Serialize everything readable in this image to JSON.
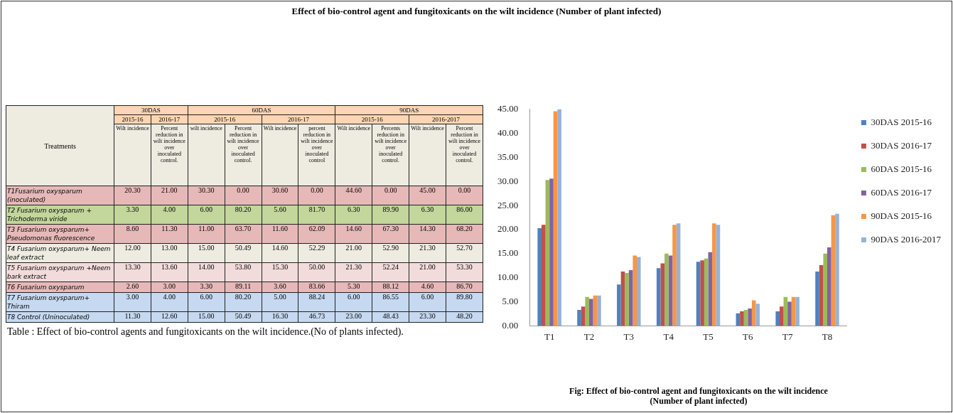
{
  "chart_data": [
    {
      "type": "heatmap",
      "data_labels": true,
      "ylabel": "Treatments",
      "categories": [
        "Wilt incidence",
        "Percent reduction in wilt incidence over inoculated control.",
        "wilt incidence",
        "Percent reduction in wilt incidence over inoculated control.",
        "Wilt incidence",
        "percent reduction in wilt incidence over inoculated control",
        "Wilt incidence",
        "Percents reduction in wilt incidence over inoculated control.",
        "Wilt incidence",
        "Percent reduction in wilt incidence over inoculated control."
      ],
      "y_categories": [
        "T1Fusarium oxysparum (inoculated)",
        "T2 Fusarium oxysparum + Trichoderma viride",
        "T3 Fusarium oxysparum+ Pseudomonas fluorescence",
        "T4 Fusarium oxysparum+ Neem leaf extract",
        "T5 Fusarium oxysparum +Neem bark extract",
        "T6 Fusarium oxysparum",
        "T7 Fusarium oxysparum+ Thiram",
        "T8 Control (Uninoculated)"
      ],
      "cells": [
        [
          20.3,
          21.0,
          30.3,
          0.0,
          30.6,
          0.0,
          44.6,
          0.0,
          45.0,
          0.0
        ],
        [
          3.3,
          4.0,
          6.0,
          80.2,
          5.6,
          81.7,
          6.3,
          89.9,
          6.3,
          86.0
        ],
        [
          8.6,
          11.3,
          11.0,
          63.7,
          11.6,
          62.09,
          14.6,
          67.3,
          14.3,
          68.2
        ],
        [
          12.0,
          13.0,
          15.0,
          50.49,
          14.6,
          52.29,
          21.0,
          52.9,
          21.3,
          52.7
        ],
        [
          13.3,
          13.6,
          14.0,
          53.8,
          15.3,
          50.0,
          21.3,
          52.24,
          21.0,
          53.3
        ],
        [
          2.6,
          3.0,
          3.3,
          89.11,
          3.6,
          83.66,
          5.3,
          88.12,
          4.6,
          86.7
        ],
        [
          3.0,
          4.0,
          6.0,
          80.2,
          5.0,
          88.24,
          6.0,
          86.55,
          6.0,
          89.8
        ],
        [
          11.3,
          12.6,
          15.0,
          50.49,
          16.3,
          46.73,
          23.0,
          48.43,
          23.3,
          48.2
        ]
      ],
      "cell_labels": [
        [
          "20.30",
          "21.00",
          "30.30",
          "0.00",
          "30.60",
          "0.00",
          "44.60",
          "0.00",
          "45.00",
          "0.00"
        ],
        [
          "3.30",
          "4.00",
          "6.00",
          "80.20",
          "5.60",
          "81.70",
          "6.30",
          "89.90",
          "6.30",
          "86.00"
        ],
        [
          "8.60",
          "11.30",
          "11.00",
          "63.70",
          "11.60",
          "62.09",
          "14.60",
          "67.30",
          "14.30",
          "68.20"
        ],
        [
          "12.00",
          "13.00",
          "15.00",
          "50.49",
          "14.60",
          "52.29",
          "21.00",
          "52.90",
          "21.30",
          "52.70"
        ],
        [
          "13.30",
          "13.60",
          "14.00",
          "53.80",
          "15.30",
          "50.00",
          "21.30",
          "52.24",
          "21.00",
          "53.30"
        ],
        [
          "2.60",
          "3.00",
          "3.30",
          "89.11",
          "3.60",
          "83.66",
          "5.30",
          "88.12",
          "4.60",
          "86.70"
        ],
        [
          "3.00",
          "4.00",
          "6.00",
          "80.20",
          "5.00",
          "88.24",
          "6.00",
          "86.55",
          "6.00",
          "89.80"
        ],
        [
          "11.30",
          "12.60",
          "15.00",
          "50.49",
          "16.30",
          "46.73",
          "23.00",
          "48.43",
          "23.30",
          "48.20"
        ]
      ],
      "annotations": [
        "30DAS",
        "60DAS",
        "90DAS",
        "2015-16",
        "2016-17",
        "2015-16",
        "2016-17",
        "2015-16",
        "2016-2017",
        "Table : Effect of bio-control agents and fungitoxicants  on the wilt incidence.(No  of plants infected)."
      ]
    },
    {
      "type": "bar",
      "title": "Effect of bio-control agent and fungitoxicants on the wilt incidence (Number of plant infected)",
      "categories": [
        "T1",
        "T2",
        "T3",
        "T4",
        "T5",
        "T6",
        "T7",
        "T8"
      ],
      "series": [
        {
          "name": "30DAS 2015-16",
          "color": "#4f81bd",
          "values": [
            20.3,
            3.3,
            8.6,
            12.0,
            13.3,
            2.6,
            3.0,
            11.3
          ]
        },
        {
          "name": "30DAS 2016-17",
          "color": "#c0504d",
          "values": [
            21.0,
            4.0,
            11.3,
            13.0,
            13.6,
            3.0,
            4.0,
            12.6
          ]
        },
        {
          "name": "60DAS 2015-16",
          "color": "#9bbb59",
          "values": [
            30.3,
            6.0,
            11.0,
            15.0,
            14.0,
            3.3,
            6.0,
            15.0
          ]
        },
        {
          "name": "60DAS 2016-17",
          "color": "#8064a2",
          "values": [
            30.6,
            5.6,
            11.6,
            14.6,
            15.3,
            3.6,
            5.0,
            16.3
          ]
        },
        {
          "name": "90DAS 2015-16",
          "color": "#f79646",
          "values": [
            44.6,
            6.3,
            14.6,
            21.0,
            21.3,
            5.3,
            6.0,
            23.0
          ]
        },
        {
          "name": "90DAS 2016-2017",
          "color": "#95b3d7",
          "values": [
            45.0,
            6.3,
            14.3,
            21.3,
            21.0,
            4.6,
            6.0,
            23.3
          ]
        }
      ],
      "ylim": [
        0,
        45
      ],
      "yticks": [
        {
          "value": 0,
          "label": "0.00"
        },
        {
          "value": 5,
          "label": "5.00"
        },
        {
          "value": 10,
          "label": "10.00"
        },
        {
          "value": 15,
          "label": "15.00"
        },
        {
          "value": 20,
          "label": "20.00"
        },
        {
          "value": 25,
          "label": "25.00"
        },
        {
          "value": 30,
          "label": "30.00"
        },
        {
          "value": 35,
          "label": "35.00"
        },
        {
          "value": 40,
          "label": "40.00"
        },
        {
          "value": 45,
          "label": "45.00"
        }
      ],
      "grid": false,
      "legend": "right",
      "annotations": [
        "Fig: Effect of bio-control agent and fungitoxicants on the wilt incidence (Number of plant infected)"
      ]
    }
  ]
}
